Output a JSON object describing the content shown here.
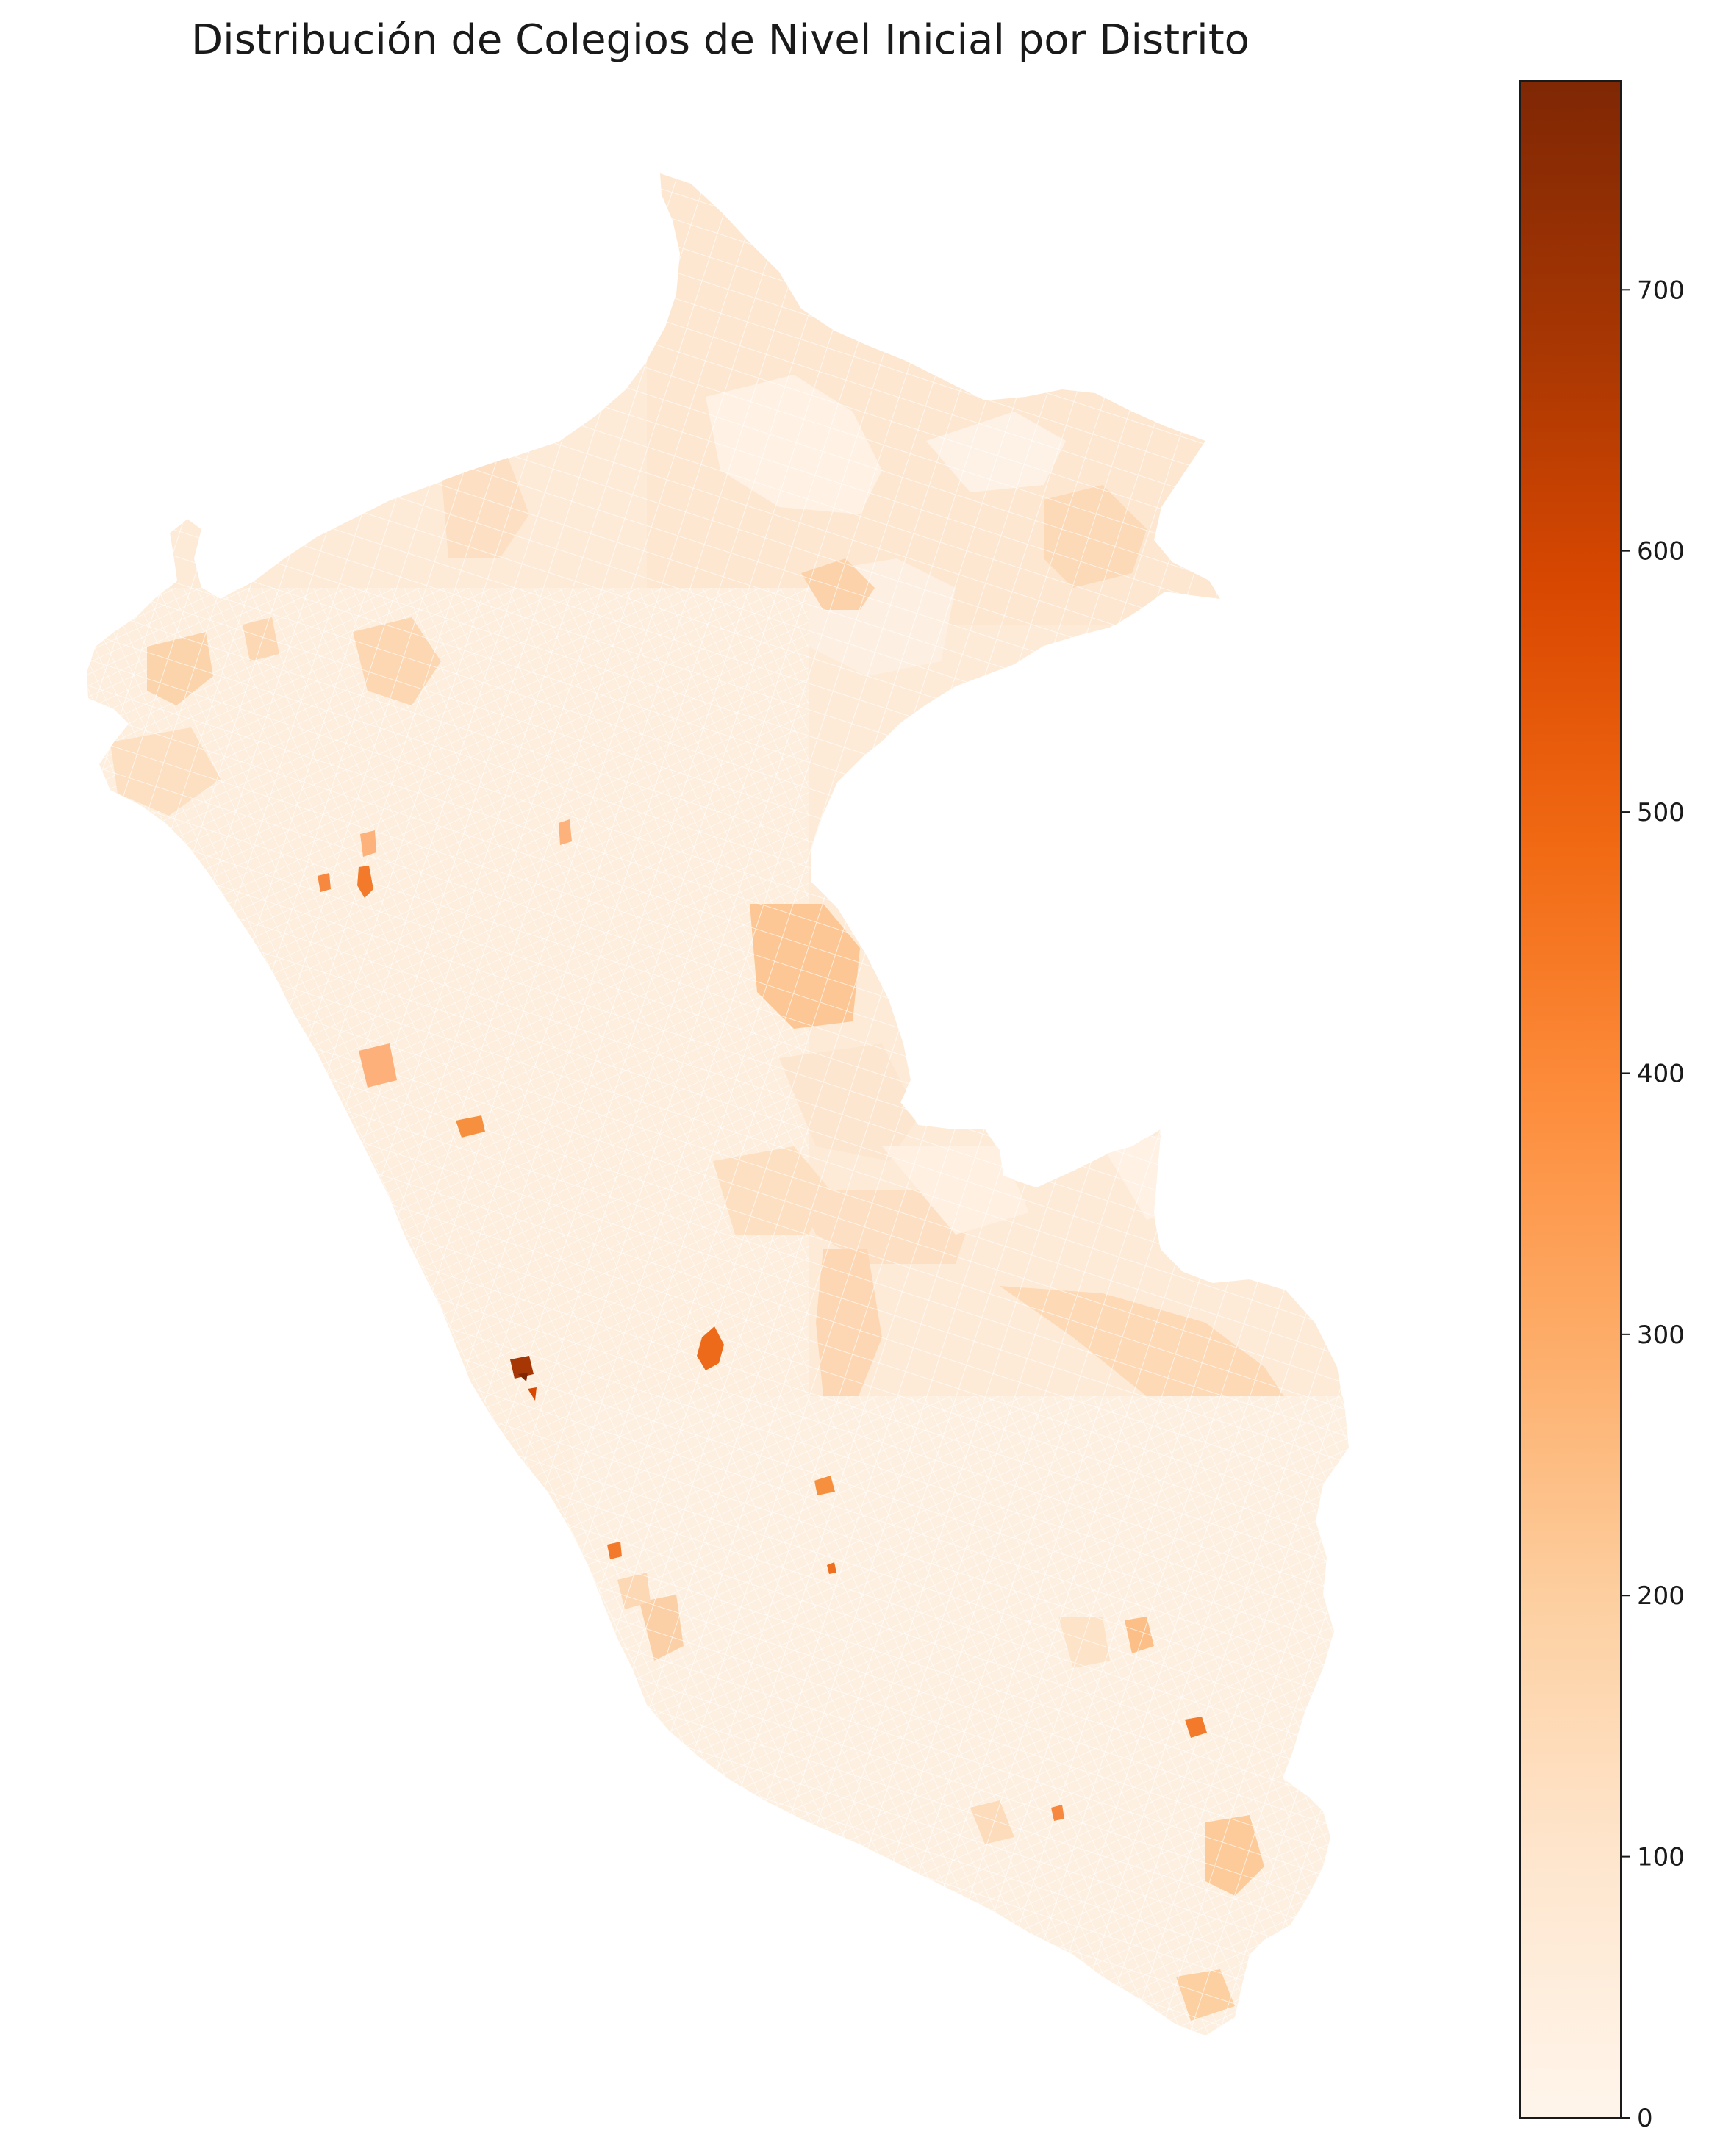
{
  "title": "Distribución de Colegios de Nivel Inicial por Distrito",
  "chart_data": {
    "type": "choropleth",
    "title": "Distribución de Colegios de Nivel Inicial por Distrito",
    "region": "Perú",
    "colormap": "Oranges",
    "colorbar": {
      "min": 0,
      "max": 780,
      "ticks": [
        0,
        100,
        200,
        300,
        400,
        500,
        600,
        700
      ],
      "tick_labels": [
        "0",
        "100",
        "200",
        "300",
        "400",
        "500",
        "600",
        "700"
      ],
      "stops": [
        "#fff5eb",
        "#fee6ce",
        "#fdd0a2",
        "#fdae6b",
        "#fd8d3c",
        "#f16913",
        "#d94801",
        "#a63603",
        "#7f2704"
      ]
    }
  }
}
